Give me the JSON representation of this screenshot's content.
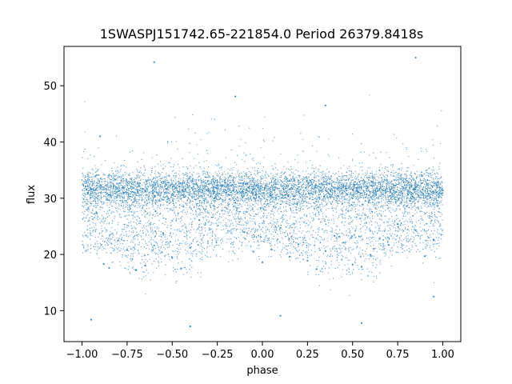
{
  "chart_data": {
    "type": "scatter",
    "title": "1SWASPJ151742.65-221854.0 Period 26379.8418s",
    "xlabel": "phase",
    "ylabel": "flux",
    "xlim": [
      -1.1,
      1.1
    ],
    "ylim": [
      4.5,
      57
    ],
    "xticks": [
      -1.0,
      -0.75,
      -0.5,
      -0.25,
      0.0,
      0.25,
      0.5,
      0.75,
      1.0
    ],
    "xtick_labels": [
      "−1.00",
      "−0.75",
      "−0.50",
      "−0.25",
      "0.00",
      "0.25",
      "0.50",
      "0.75",
      "1.00"
    ],
    "yticks": [
      10,
      20,
      30,
      40,
      50
    ],
    "ytick_labels": [
      "10",
      "20",
      "30",
      "40",
      "50"
    ],
    "grid": false,
    "point_color": "#1f77b4",
    "series": [
      {
        "phase_range": [
          -1.0,
          1.0
        ],
        "points": [
          [
            -0.98,
            32.1
          ],
          [
            -0.95,
            31.6
          ],
          [
            -0.92,
            27.4
          ],
          [
            -0.88,
            18.3
          ],
          [
            -0.85,
            17.6
          ],
          [
            -0.8,
            22.5
          ],
          [
            -0.75,
            20.8
          ],
          [
            -0.7,
            17.2
          ],
          [
            -0.65,
            18.0
          ],
          [
            -0.6,
            21.6
          ],
          [
            -0.55,
            23.8
          ],
          [
            -0.5,
            19.4
          ],
          [
            -0.45,
            17.5
          ],
          [
            -0.4,
            21.2
          ],
          [
            -0.35,
            26.1
          ],
          [
            -0.3,
            31.5
          ],
          [
            -0.25,
            32.3
          ],
          [
            -0.2,
            31.0
          ],
          [
            -0.15,
            29.2
          ],
          [
            -0.1,
            24.0
          ],
          [
            -0.05,
            20.5
          ],
          [
            0.0,
            18.6
          ],
          [
            0.05,
            20.9
          ],
          [
            0.1,
            24.7
          ],
          [
            0.15,
            19.6
          ],
          [
            0.2,
            21.8
          ],
          [
            0.25,
            18.9
          ],
          [
            0.3,
            17.4
          ],
          [
            0.35,
            20.6
          ],
          [
            0.4,
            23.3
          ],
          [
            0.45,
            22.1
          ],
          [
            0.5,
            18.2
          ],
          [
            0.55,
            17.8
          ],
          [
            0.6,
            19.9
          ],
          [
            0.65,
            22.8
          ],
          [
            0.7,
            21.7
          ],
          [
            0.75,
            25.4
          ],
          [
            0.8,
            28.6
          ],
          [
            0.85,
            24.3
          ],
          [
            0.9,
            19.7
          ],
          [
            0.95,
            22.6
          ],
          [
            1.0,
            31.4
          ],
          [
            -0.9,
            41.0
          ],
          [
            -0.6,
            54.2
          ],
          [
            -0.15,
            48.1
          ],
          [
            0.35,
            46.5
          ],
          [
            0.85,
            55.0
          ],
          [
            -0.95,
            8.4
          ],
          [
            -0.4,
            7.2
          ],
          [
            0.1,
            9.1
          ],
          [
            0.55,
            7.8
          ],
          [
            0.95,
            12.5
          ]
        ]
      }
    ]
  }
}
